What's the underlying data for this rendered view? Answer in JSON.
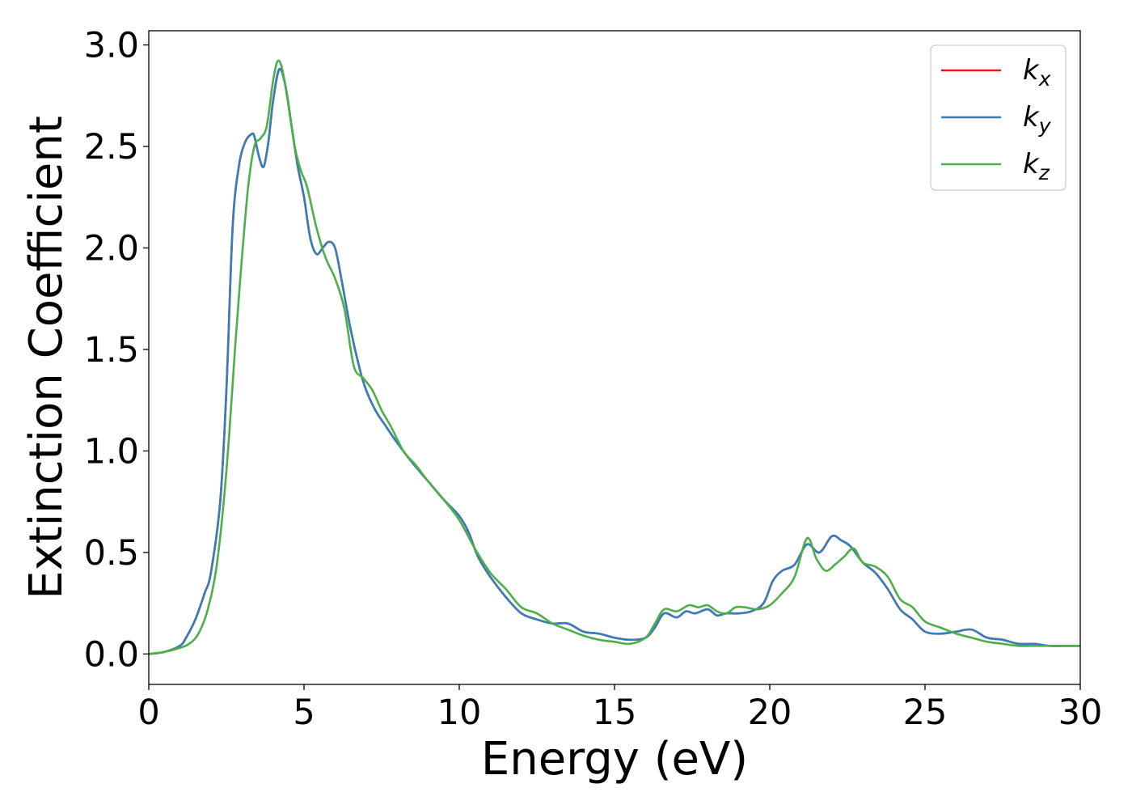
{
  "chart_data": {
    "type": "line",
    "xlabel": "Energy (eV)",
    "ylabel": "Extinction Coefficient",
    "xlim": [
      0,
      30
    ],
    "ylim": [
      -0.15,
      3.07
    ],
    "xticks": [
      0,
      5,
      10,
      15,
      20,
      25,
      30
    ],
    "xtick_labels": [
      "0",
      "5",
      "10",
      "15",
      "20",
      "25",
      "30"
    ],
    "yticks": [
      0.0,
      0.5,
      1.0,
      1.5,
      2.0,
      2.5,
      3.0
    ],
    "ytick_labels": [
      "0.0",
      "0.5",
      "1.0",
      "1.5",
      "2.0",
      "2.5",
      "3.0"
    ],
    "grid": false,
    "legend_position": "top-right",
    "series": [
      {
        "name": "kx",
        "label_base": "k",
        "label_sub": "x",
        "color": "#e41a1c",
        "x": [
          0,
          0.5,
          1.0,
          1.2,
          1.5,
          1.8,
          2.0,
          2.3,
          2.5,
          2.7,
          2.9,
          3.1,
          3.3,
          3.4,
          3.55,
          3.7,
          3.85,
          4.0,
          4.2,
          4.4,
          4.6,
          4.8,
          5.0,
          5.2,
          5.4,
          5.6,
          5.8,
          6.0,
          6.2,
          6.5,
          6.8,
          7.0,
          7.3,
          7.6,
          8.0,
          8.5,
          9.0,
          9.5,
          10.0,
          10.3,
          10.6,
          11.0,
          11.5,
          12.0,
          12.5,
          13.0,
          13.5,
          14.0,
          14.5,
          15.0,
          15.5,
          16.0,
          16.3,
          16.6,
          17.0,
          17.3,
          17.6,
          18.0,
          18.3,
          18.6,
          19.0,
          19.4,
          19.8,
          20.1,
          20.4,
          20.8,
          21.2,
          21.6,
          22.0,
          22.3,
          22.6,
          23.0,
          23.4,
          23.8,
          24.2,
          24.6,
          25.0,
          25.5,
          26.0,
          26.5,
          27.0,
          27.5,
          28.0,
          28.5,
          29.0,
          29.5,
          30.0
        ],
        "y": [
          0.0,
          0.01,
          0.04,
          0.08,
          0.17,
          0.3,
          0.4,
          0.75,
          1.3,
          2.1,
          2.4,
          2.52,
          2.56,
          2.55,
          2.45,
          2.4,
          2.52,
          2.72,
          2.88,
          2.8,
          2.6,
          2.4,
          2.25,
          2.05,
          1.97,
          2.0,
          2.03,
          2.0,
          1.85,
          1.6,
          1.4,
          1.3,
          1.2,
          1.13,
          1.04,
          0.94,
          0.85,
          0.76,
          0.68,
          0.6,
          0.48,
          0.38,
          0.28,
          0.2,
          0.17,
          0.15,
          0.15,
          0.11,
          0.1,
          0.08,
          0.07,
          0.08,
          0.13,
          0.2,
          0.18,
          0.21,
          0.2,
          0.22,
          0.19,
          0.2,
          0.2,
          0.21,
          0.25,
          0.36,
          0.41,
          0.44,
          0.54,
          0.5,
          0.58,
          0.56,
          0.53,
          0.45,
          0.4,
          0.32,
          0.22,
          0.17,
          0.11,
          0.1,
          0.11,
          0.12,
          0.08,
          0.07,
          0.05,
          0.05,
          0.04,
          0.04,
          0.04
        ]
      },
      {
        "name": "ky",
        "label_base": "k",
        "label_sub": "y",
        "color": "#377eb8",
        "x": [
          0,
          0.5,
          1.0,
          1.2,
          1.5,
          1.8,
          2.0,
          2.3,
          2.5,
          2.7,
          2.9,
          3.1,
          3.3,
          3.4,
          3.55,
          3.7,
          3.85,
          4.0,
          4.2,
          4.4,
          4.6,
          4.8,
          5.0,
          5.2,
          5.4,
          5.6,
          5.8,
          6.0,
          6.2,
          6.5,
          6.8,
          7.0,
          7.3,
          7.6,
          8.0,
          8.5,
          9.0,
          9.5,
          10.0,
          10.3,
          10.6,
          11.0,
          11.5,
          12.0,
          12.5,
          13.0,
          13.5,
          14.0,
          14.5,
          15.0,
          15.5,
          16.0,
          16.3,
          16.6,
          17.0,
          17.3,
          17.6,
          18.0,
          18.3,
          18.6,
          19.0,
          19.4,
          19.8,
          20.1,
          20.4,
          20.8,
          21.2,
          21.6,
          22.0,
          22.3,
          22.6,
          23.0,
          23.4,
          23.8,
          24.2,
          24.6,
          25.0,
          25.5,
          26.0,
          26.5,
          27.0,
          27.5,
          28.0,
          28.5,
          29.0,
          29.5,
          30.0
        ],
        "y": [
          0.0,
          0.01,
          0.04,
          0.08,
          0.17,
          0.3,
          0.4,
          0.75,
          1.3,
          2.1,
          2.4,
          2.52,
          2.56,
          2.55,
          2.45,
          2.4,
          2.52,
          2.72,
          2.88,
          2.8,
          2.6,
          2.4,
          2.25,
          2.05,
          1.97,
          2.0,
          2.03,
          2.0,
          1.85,
          1.6,
          1.4,
          1.3,
          1.2,
          1.13,
          1.04,
          0.94,
          0.85,
          0.76,
          0.68,
          0.6,
          0.48,
          0.38,
          0.28,
          0.2,
          0.17,
          0.15,
          0.15,
          0.11,
          0.1,
          0.08,
          0.07,
          0.08,
          0.13,
          0.2,
          0.18,
          0.21,
          0.2,
          0.22,
          0.19,
          0.2,
          0.2,
          0.21,
          0.25,
          0.36,
          0.41,
          0.44,
          0.54,
          0.5,
          0.58,
          0.56,
          0.53,
          0.45,
          0.4,
          0.32,
          0.22,
          0.17,
          0.11,
          0.1,
          0.11,
          0.12,
          0.08,
          0.07,
          0.05,
          0.05,
          0.04,
          0.04,
          0.04
        ]
      },
      {
        "name": "kz",
        "label_base": "k",
        "label_sub": "z",
        "color": "#4daf4a",
        "x": [
          0,
          0.5,
          1.0,
          1.3,
          1.6,
          1.9,
          2.2,
          2.5,
          2.8,
          3.0,
          3.2,
          3.4,
          3.6,
          3.8,
          4.0,
          4.15,
          4.3,
          4.5,
          4.7,
          4.9,
          5.1,
          5.4,
          5.7,
          6.0,
          6.3,
          6.6,
          6.9,
          7.2,
          7.5,
          7.8,
          8.2,
          8.6,
          9.0,
          9.5,
          10.0,
          10.5,
          11.0,
          11.5,
          12.0,
          12.5,
          13.0,
          13.5,
          14.0,
          14.5,
          15.0,
          15.5,
          16.0,
          16.3,
          16.6,
          17.0,
          17.4,
          17.7,
          18.0,
          18.3,
          18.6,
          18.9,
          19.2,
          19.6,
          20.0,
          20.4,
          20.8,
          21.2,
          21.5,
          21.8,
          22.1,
          22.4,
          22.7,
          23.0,
          23.4,
          23.8,
          24.2,
          24.6,
          25.0,
          25.5,
          26.0,
          26.5,
          27.0,
          27.5,
          28.0,
          28.5,
          29.0,
          29.5,
          30.0
        ],
        "y": [
          0.0,
          0.01,
          0.03,
          0.05,
          0.1,
          0.22,
          0.45,
          0.9,
          1.55,
          1.95,
          2.3,
          2.5,
          2.54,
          2.6,
          2.82,
          2.92,
          2.88,
          2.7,
          2.5,
          2.38,
          2.3,
          2.1,
          1.95,
          1.85,
          1.7,
          1.42,
          1.36,
          1.3,
          1.2,
          1.12,
          1.0,
          0.93,
          0.85,
          0.76,
          0.66,
          0.52,
          0.4,
          0.32,
          0.23,
          0.2,
          0.15,
          0.12,
          0.09,
          0.07,
          0.06,
          0.05,
          0.08,
          0.15,
          0.22,
          0.21,
          0.24,
          0.23,
          0.24,
          0.21,
          0.2,
          0.23,
          0.23,
          0.22,
          0.24,
          0.3,
          0.38,
          0.57,
          0.47,
          0.41,
          0.44,
          0.48,
          0.52,
          0.45,
          0.43,
          0.38,
          0.27,
          0.23,
          0.16,
          0.13,
          0.1,
          0.08,
          0.06,
          0.05,
          0.04,
          0.04,
          0.04,
          0.04,
          0.04
        ]
      }
    ]
  }
}
